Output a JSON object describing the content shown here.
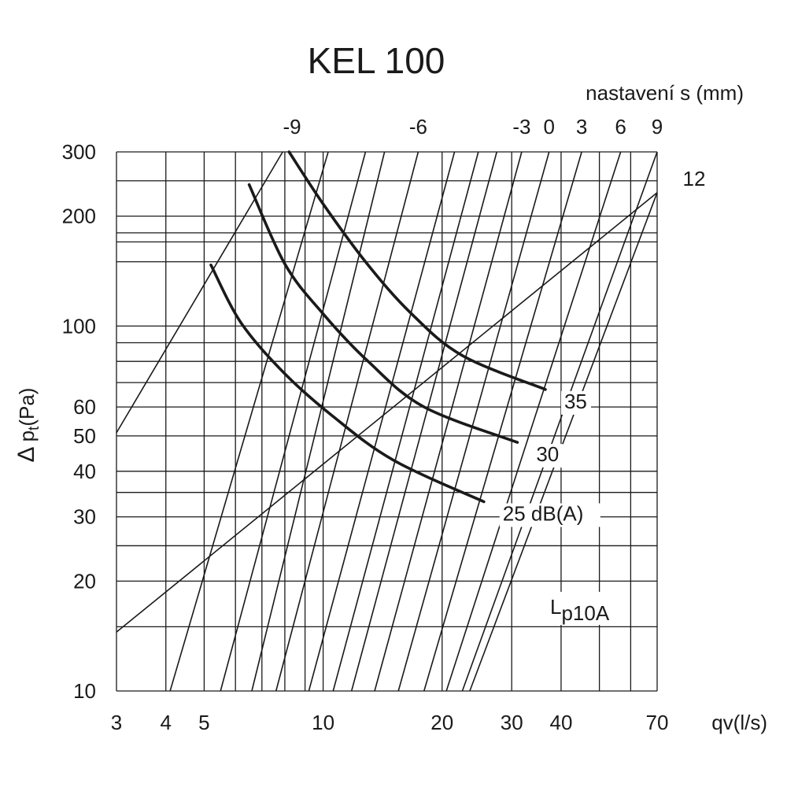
{
  "chart_data": {
    "type": "line",
    "title": "KEL 100",
    "xlabel": "qv(l/s)",
    "ylabel": "Δp_t (Pa)",
    "x_scale": "log",
    "y_scale": "log",
    "xlim": [
      3,
      70
    ],
    "ylim": [
      10,
      300
    ],
    "grid": true,
    "x_ticks": [
      3,
      4,
      5,
      10,
      20,
      30,
      40,
      70
    ],
    "y_ticks": [
      10,
      20,
      30,
      40,
      50,
      60,
      100,
      200,
      300
    ],
    "x_minor_ticks": [
      6,
      7,
      8,
      9,
      50,
      60
    ],
    "y_minor_ticks": [
      15,
      25,
      35,
      70,
      80,
      90,
      150,
      170,
      180,
      250
    ],
    "settings_axis_label": "nastavení s (mm)",
    "settings": [
      {
        "s": "-9",
        "points": [
          [
            3.0,
            51
          ],
          [
            7.9,
            300
          ]
        ]
      },
      {
        "s": "",
        "points": [
          [
            4.1,
            10
          ],
          [
            10.3,
            300
          ]
        ]
      },
      {
        "s": "",
        "points": [
          [
            5.5,
            10
          ],
          [
            12.8,
            300
          ]
        ]
      },
      {
        "s": "",
        "points": [
          [
            6.6,
            10
          ],
          [
            14.3,
            300
          ]
        ]
      },
      {
        "s": "-6",
        "points": [
          [
            7.6,
            10
          ],
          [
            17.4,
            300
          ]
        ]
      },
      {
        "s": "",
        "points": [
          [
            9.2,
            10
          ],
          [
            21.5,
            300
          ]
        ]
      },
      {
        "s": "",
        "points": [
          [
            10.6,
            10
          ],
          [
            24.7,
            300
          ]
        ]
      },
      {
        "s": "",
        "points": [
          [
            11.8,
            10
          ],
          [
            27.5,
            300
          ]
        ]
      },
      {
        "s": "-3",
        "points": [
          [
            13.5,
            10
          ],
          [
            31.8,
            300
          ]
        ]
      },
      {
        "s": "0",
        "points": [
          [
            15.5,
            10
          ],
          [
            37.3,
            300
          ]
        ]
      },
      {
        "s": "3",
        "points": [
          [
            18.0,
            10
          ],
          [
            45.1,
            300
          ]
        ]
      },
      {
        "s": "6",
        "points": [
          [
            20.5,
            10
          ],
          [
            56.6,
            300
          ]
        ]
      },
      {
        "s": "9",
        "points": [
          [
            22.5,
            10
          ],
          [
            70.0,
            300
          ]
        ]
      },
      {
        "s": "12",
        "points": [
          [
            23.5,
            10
          ],
          [
            70.0,
            232
          ]
        ]
      },
      {
        "s": "",
        "points": [
          [
            3.0,
            14.5
          ],
          [
            70.0,
            232
          ]
        ]
      }
    ],
    "series": [
      {
        "name": "35",
        "points": [
          [
            8.2,
            300
          ],
          [
            10.0,
            216
          ],
          [
            12.8,
            150
          ],
          [
            16.6,
            109
          ],
          [
            22.5,
            83
          ],
          [
            36.5,
            67
          ]
        ]
      },
      {
        "name": "30",
        "points": [
          [
            6.5,
            244
          ],
          [
            8.0,
            148
          ],
          [
            10.0,
            108
          ],
          [
            13.0,
            80
          ],
          [
            18.0,
            60
          ],
          [
            31.0,
            48
          ]
        ]
      },
      {
        "name": "25 dB(A)",
        "points": [
          [
            5.2,
            147
          ],
          [
            6.2,
            102
          ],
          [
            8.0,
            74
          ],
          [
            10.5,
            57
          ],
          [
            15.0,
            43
          ],
          [
            25.5,
            33
          ]
        ]
      }
    ],
    "annotations": [
      "Lp10A"
    ]
  }
}
